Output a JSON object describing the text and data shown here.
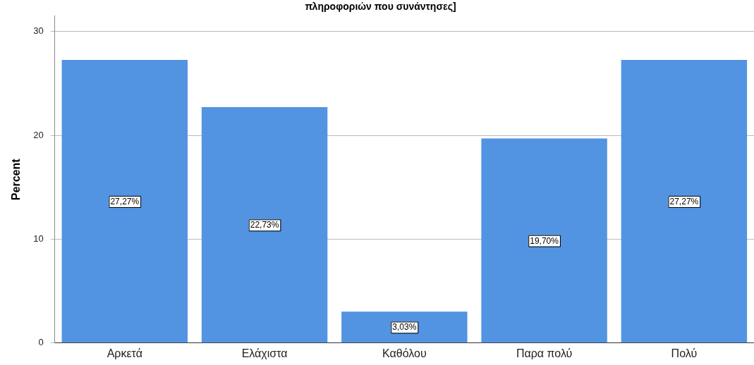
{
  "chart_data": {
    "type": "bar",
    "title": "πληροφοριών που συνάντησες]",
    "ylabel": "Percent",
    "categories": [
      "Αρκετά",
      "Ελάχιστα",
      "Καθόλου",
      "Παρα πολύ",
      "Πολύ"
    ],
    "values": [
      27.27,
      22.73,
      3.03,
      19.7,
      27.27
    ],
    "value_labels": [
      "27,27%",
      "22,73%",
      "3,03%",
      "19,70%",
      "27,27%"
    ],
    "color": "#5294e2",
    "ylim": [
      0,
      31.5
    ],
    "yticks": [
      0,
      10,
      20,
      30
    ],
    "grid": "y",
    "legend": false
  }
}
